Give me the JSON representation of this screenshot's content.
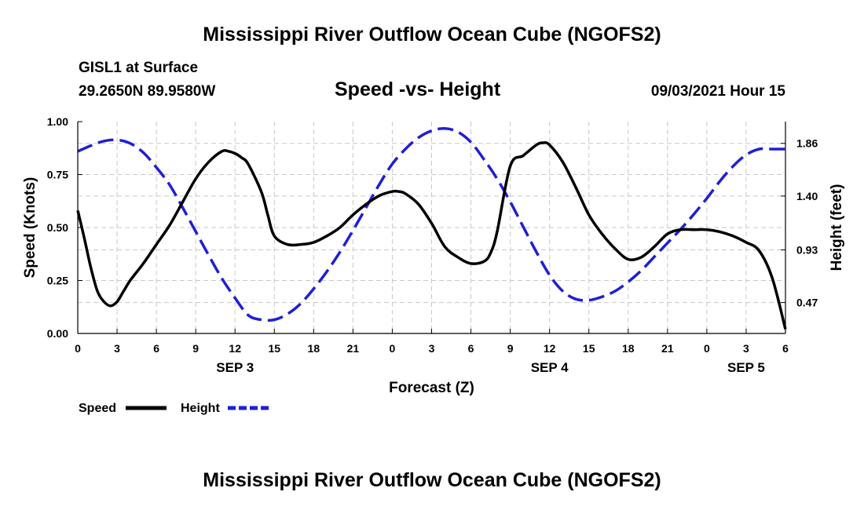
{
  "header": {
    "title": "Mississippi River Outflow Ocean Cube (NGOFS2)",
    "station": "GISL1 at Surface",
    "coords": "29.2650N  89.9580W",
    "subtitle": "Speed -vs- Height",
    "datetime": "09/03/2021 Hour 15"
  },
  "footer": {
    "title": "Mississippi River Outflow Ocean Cube (NGOFS2)"
  },
  "chart_data": {
    "type": "line",
    "title": "Speed -vs- Height",
    "xlabel": "Forecast (Z)",
    "ylabel": "Speed (Knots)",
    "ylabel_right": "Height (feet)",
    "x_unit": "hours since Sep 3 00Z",
    "xlim": [
      -3,
      51
    ],
    "ylim": [
      0,
      1.0
    ],
    "ylim_right": [
      0.2,
      2.05
    ],
    "grid": true,
    "x_ticks": [
      {
        "x": -3,
        "label": "0"
      },
      {
        "x": 0,
        "label": "3"
      },
      {
        "x": 3,
        "label": "6"
      },
      {
        "x": 6,
        "label": "9"
      },
      {
        "x": 9,
        "label": "12"
      },
      {
        "x": 12,
        "label": "15"
      },
      {
        "x": 15,
        "label": "18"
      },
      {
        "x": 18,
        "label": "21"
      },
      {
        "x": 21,
        "label": "0"
      },
      {
        "x": 24,
        "label": "3"
      },
      {
        "x": 27,
        "label": "6"
      },
      {
        "x": 30,
        "label": "9"
      },
      {
        "x": 33,
        "label": "12"
      },
      {
        "x": 36,
        "label": "15"
      },
      {
        "x": 39,
        "label": "18"
      },
      {
        "x": 42,
        "label": "21"
      },
      {
        "x": 45,
        "label": "0"
      },
      {
        "x": 48,
        "label": "3"
      },
      {
        "x": 51,
        "label": "6"
      }
    ],
    "date_labels": [
      {
        "x": 9,
        "label": "SEP 3"
      },
      {
        "x": 33,
        "label": "SEP 4"
      },
      {
        "x": 48,
        "label": "SEP 5"
      }
    ],
    "y_ticks": [
      "0.00",
      "0.25",
      "0.50",
      "0.75",
      "1.00"
    ],
    "y_ticks_right": [
      {
        "v": 0.47,
        "label": "0.47"
      },
      {
        "v": 0.93,
        "label": "0.93"
      },
      {
        "v": 1.4,
        "label": "1.40"
      },
      {
        "v": 1.86,
        "label": "1.86"
      }
    ],
    "series": [
      {
        "name": "Speed",
        "axis": "left",
        "color": "#000000",
        "style": "solid",
        "x": [
          -3,
          -2.5,
          -2,
          -1.5,
          -1,
          -0.5,
          0,
          0.5,
          1,
          2,
          3,
          4,
          5,
          6,
          7,
          8,
          8.5,
          9,
          9.5,
          10,
          11,
          11.5,
          12,
          13,
          14,
          15,
          16,
          17,
          18,
          19,
          20,
          21,
          21.5,
          22,
          23,
          24,
          25,
          26,
          27,
          28,
          28.5,
          29,
          30,
          31,
          32,
          32.5,
          33,
          34,
          35,
          36,
          37,
          38,
          39,
          40,
          41,
          42,
          43,
          44,
          45,
          46,
          47,
          48,
          49,
          50,
          51
        ],
        "values": [
          0.58,
          0.45,
          0.31,
          0.2,
          0.15,
          0.13,
          0.15,
          0.2,
          0.25,
          0.33,
          0.42,
          0.51,
          0.62,
          0.73,
          0.81,
          0.86,
          0.86,
          0.85,
          0.83,
          0.8,
          0.67,
          0.56,
          0.46,
          0.42,
          0.42,
          0.43,
          0.46,
          0.5,
          0.56,
          0.61,
          0.65,
          0.67,
          0.67,
          0.66,
          0.61,
          0.52,
          0.41,
          0.36,
          0.33,
          0.34,
          0.38,
          0.48,
          0.79,
          0.84,
          0.89,
          0.9,
          0.89,
          0.81,
          0.69,
          0.56,
          0.47,
          0.4,
          0.35,
          0.36,
          0.41,
          0.47,
          0.49,
          0.49,
          0.49,
          0.48,
          0.46,
          0.43,
          0.39,
          0.26,
          0.02
        ]
      },
      {
        "name": "Height",
        "axis": "right",
        "color": "#1f1fd6",
        "style": "dashed",
        "x": [
          -3,
          -2,
          -1,
          0,
          1,
          2,
          3,
          4,
          5,
          6,
          7,
          8,
          9,
          10,
          11,
          12,
          13,
          14,
          15,
          16,
          17,
          18,
          19,
          20,
          21,
          22,
          23,
          24,
          25,
          26,
          27,
          28,
          29,
          30,
          31,
          32,
          33,
          34,
          35,
          36,
          37,
          38,
          39,
          40,
          41,
          42,
          43,
          44,
          45,
          46,
          47,
          48,
          49,
          50,
          51
        ],
        "values": [
          1.79,
          1.84,
          1.88,
          1.89,
          1.86,
          1.78,
          1.65,
          1.5,
          1.3,
          1.09,
          0.88,
          0.68,
          0.51,
          0.36,
          0.32,
          0.32,
          0.37,
          0.46,
          0.59,
          0.74,
          0.91,
          1.1,
          1.3,
          1.5,
          1.68,
          1.81,
          1.91,
          1.97,
          1.99,
          1.96,
          1.87,
          1.72,
          1.55,
          1.35,
          1.13,
          0.91,
          0.71,
          0.57,
          0.5,
          0.49,
          0.52,
          0.57,
          0.65,
          0.75,
          0.87,
          0.99,
          1.11,
          1.24,
          1.38,
          1.53,
          1.66,
          1.76,
          1.81,
          1.81,
          1.81
        ]
      }
    ],
    "legend": {
      "position": "bottom-left",
      "entries": [
        {
          "label": "Speed",
          "color": "#000000",
          "style": "solid"
        },
        {
          "label": "Height",
          "color": "#1f1fd6",
          "style": "dashed"
        }
      ]
    }
  }
}
